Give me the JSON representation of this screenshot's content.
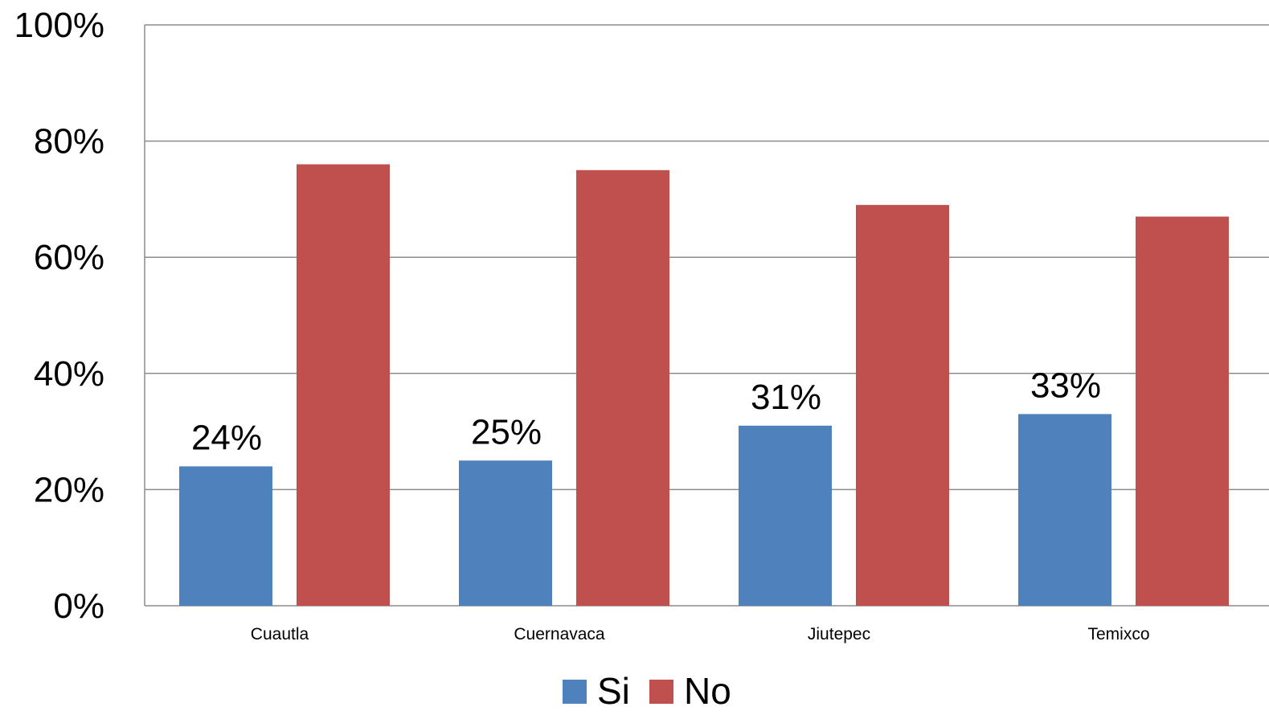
{
  "chart_data": {
    "type": "bar",
    "title": "",
    "xlabel": "",
    "ylabel": "",
    "categories": [
      "Cuautla",
      "Cuernavaca",
      "Jiutepec",
      "Temixco"
    ],
    "series": [
      {
        "name": "Si",
        "color": "#4F81BD",
        "values": [
          0.24,
          0.25,
          0.31,
          0.33
        ],
        "data_labels": [
          "24%",
          "25%",
          "31%",
          "33%"
        ]
      },
      {
        "name": "No",
        "color": "#C0504D",
        "values": [
          0.76,
          0.75,
          0.69,
          0.67
        ],
        "data_labels": []
      }
    ],
    "ylim": [
      0,
      1
    ],
    "yticks": [
      0,
      0.2,
      0.4,
      0.6,
      0.8,
      1.0
    ],
    "ytick_labels": [
      "0%",
      "20%",
      "40%",
      "60%",
      "80%",
      "100%"
    ],
    "grid": true,
    "gridline_color": "#8C8C8C",
    "legend_position": "bottom"
  }
}
